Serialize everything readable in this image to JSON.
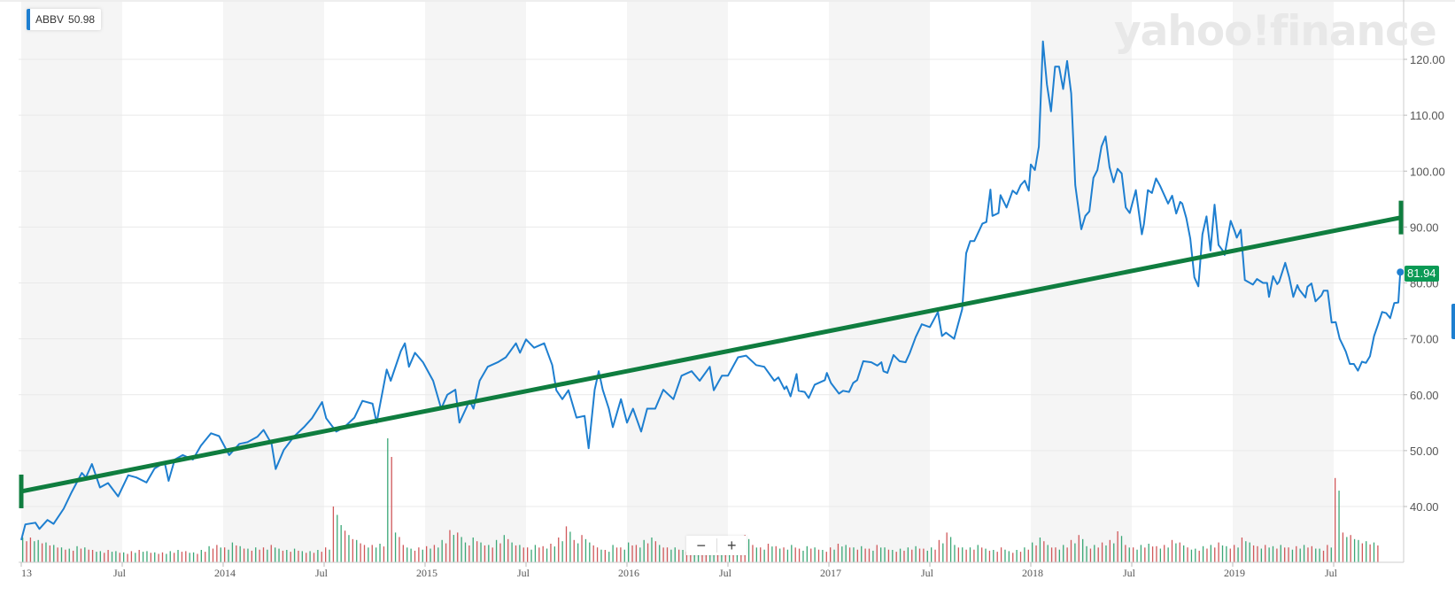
{
  "legend": {
    "symbol": "ABBV",
    "value": "50.98",
    "color": "#1e7fd0"
  },
  "watermark": "yahoo!finance",
  "last_price_label": "81.94",
  "zoom_controls": {
    "zoom_out": "−",
    "zoom_in": "+"
  },
  "colors": {
    "price_line": "#1e7fd0",
    "trendline": "#0f7d3f",
    "last_price_tag": "#0a9a55",
    "volume_up": "#3aa776",
    "volume_down": "#d0585a",
    "band": "#f5f5f5"
  },
  "chart_data": {
    "type": "line",
    "title": "",
    "xlabel": "",
    "ylabel": "",
    "ylim": [
      30,
      130
    ],
    "grid": true,
    "y_axis_side": "right",
    "y_ticks": [
      "40.00",
      "50.00",
      "60.00",
      "70.00",
      "80.00",
      "90.00",
      "100.00",
      "110.00",
      "120.00"
    ],
    "x_ticks": [
      {
        "label": "13",
        "year": 2013.0
      },
      {
        "label": "Jul",
        "year": 2013.5
      },
      {
        "label": "2014",
        "year": 2014.0
      },
      {
        "label": "Jul",
        "year": 2014.5
      },
      {
        "label": "2015",
        "year": 2015.0
      },
      {
        "label": "Jul",
        "year": 2015.5
      },
      {
        "label": "2016",
        "year": 2016.0
      },
      {
        "label": "Jul",
        "year": 2016.5
      },
      {
        "label": "2017",
        "year": 2017.0
      },
      {
        "label": "Jul",
        "year": 2017.5
      },
      {
        "label": "2018",
        "year": 2018.0
      },
      {
        "label": "Jul",
        "year": 2018.5
      },
      {
        "label": "2019",
        "year": 2019.0
      },
      {
        "label": "Jul",
        "year": 2019.5
      }
    ],
    "series": [
      {
        "points": [
          [
            2013.0,
            34.0
          ],
          [
            2013.02,
            36.8
          ],
          [
            2013.07,
            37.1
          ],
          [
            2013.09,
            36.0
          ],
          [
            2013.13,
            37.6
          ],
          [
            2013.16,
            36.9
          ],
          [
            2013.21,
            39.6
          ],
          [
            2013.25,
            42.6
          ],
          [
            2013.3,
            46.0
          ],
          [
            2013.32,
            45.2
          ],
          [
            2013.35,
            47.6
          ],
          [
            2013.39,
            43.4
          ],
          [
            2013.43,
            44.2
          ],
          [
            2013.48,
            41.8
          ],
          [
            2013.53,
            45.6
          ],
          [
            2013.57,
            45.2
          ],
          [
            2013.62,
            44.3
          ],
          [
            2013.66,
            46.8
          ],
          [
            2013.71,
            47.9
          ],
          [
            2013.73,
            44.6
          ],
          [
            2013.76,
            48.4
          ],
          [
            2013.8,
            49.2
          ],
          [
            2013.85,
            48.4
          ],
          [
            2013.89,
            50.9
          ],
          [
            2013.94,
            53.1
          ],
          [
            2013.98,
            52.6
          ],
          [
            2014.03,
            49.2
          ],
          [
            2014.08,
            51.2
          ],
          [
            2014.12,
            51.5
          ],
          [
            2014.17,
            52.5
          ],
          [
            2014.2,
            53.7
          ],
          [
            2014.24,
            51.2
          ],
          [
            2014.26,
            46.7
          ],
          [
            2014.3,
            50.1
          ],
          [
            2014.35,
            52.5
          ],
          [
            2014.4,
            54.2
          ],
          [
            2014.44,
            55.8
          ],
          [
            2014.49,
            58.7
          ],
          [
            2014.51,
            55.8
          ],
          [
            2014.56,
            53.4
          ],
          [
            2014.6,
            54.2
          ],
          [
            2014.65,
            55.9
          ],
          [
            2014.69,
            58.9
          ],
          [
            2014.74,
            58.4
          ],
          [
            2014.76,
            55.0
          ],
          [
            2014.81,
            64.5
          ],
          [
            2014.83,
            62.5
          ],
          [
            2014.88,
            67.8
          ],
          [
            2014.9,
            69.2
          ],
          [
            2014.92,
            65.0
          ],
          [
            2014.95,
            67.5
          ],
          [
            2014.99,
            65.8
          ],
          [
            2015.04,
            62.5
          ],
          [
            2015.08,
            57.5
          ],
          [
            2015.11,
            60.0
          ],
          [
            2015.15,
            60.9
          ],
          [
            2015.17,
            55.0
          ],
          [
            2015.22,
            58.9
          ],
          [
            2015.24,
            57.5
          ],
          [
            2015.27,
            62.5
          ],
          [
            2015.31,
            65.0
          ],
          [
            2015.36,
            65.8
          ],
          [
            2015.4,
            66.7
          ],
          [
            2015.45,
            69.2
          ],
          [
            2015.47,
            67.5
          ],
          [
            2015.5,
            69.9
          ],
          [
            2015.54,
            68.4
          ],
          [
            2015.59,
            69.2
          ],
          [
            2015.63,
            65.3
          ],
          [
            2015.65,
            60.8
          ],
          [
            2015.68,
            59.2
          ],
          [
            2015.71,
            60.8
          ],
          [
            2015.75,
            55.9
          ],
          [
            2015.79,
            56.2
          ],
          [
            2015.81,
            50.4
          ],
          [
            2015.84,
            60.9
          ],
          [
            2015.86,
            64.2
          ],
          [
            2015.88,
            60.9
          ],
          [
            2015.91,
            57.5
          ],
          [
            2015.93,
            54.2
          ],
          [
            2015.97,
            59.2
          ],
          [
            2016.0,
            55.0
          ],
          [
            2016.03,
            57.5
          ],
          [
            2016.07,
            53.4
          ],
          [
            2016.1,
            57.5
          ],
          [
            2016.14,
            57.5
          ],
          [
            2016.18,
            60.9
          ],
          [
            2016.23,
            59.2
          ],
          [
            2016.27,
            63.4
          ],
          [
            2016.32,
            64.2
          ],
          [
            2016.36,
            62.5
          ],
          [
            2016.41,
            65.0
          ],
          [
            2016.43,
            60.8
          ],
          [
            2016.47,
            63.4
          ],
          [
            2016.5,
            63.4
          ],
          [
            2016.55,
            66.7
          ],
          [
            2016.59,
            67.0
          ],
          [
            2016.64,
            65.3
          ],
          [
            2016.68,
            65.0
          ],
          [
            2016.73,
            62.5
          ],
          [
            2016.75,
            63.1
          ],
          [
            2016.78,
            61.0
          ],
          [
            2016.79,
            61.5
          ],
          [
            2016.81,
            59.7
          ],
          [
            2016.84,
            63.7
          ],
          [
            2016.85,
            60.7
          ],
          [
            2016.88,
            60.5
          ],
          [
            2016.9,
            59.4
          ],
          [
            2016.93,
            61.8
          ],
          [
            2016.98,
            62.6
          ],
          [
            2016.99,
            63.9
          ],
          [
            2017.01,
            62.1
          ],
          [
            2017.05,
            60.2
          ],
          [
            2017.07,
            60.7
          ],
          [
            2017.1,
            60.5
          ],
          [
            2017.12,
            62.1
          ],
          [
            2017.14,
            62.6
          ],
          [
            2017.17,
            66.0
          ],
          [
            2017.21,
            65.8
          ],
          [
            2017.24,
            65.2
          ],
          [
            2017.26,
            65.8
          ],
          [
            2017.27,
            64.2
          ],
          [
            2017.29,
            63.9
          ],
          [
            2017.32,
            67.1
          ],
          [
            2017.35,
            66.0
          ],
          [
            2017.38,
            65.8
          ],
          [
            2017.4,
            67.4
          ],
          [
            2017.43,
            70.3
          ],
          [
            2017.46,
            72.6
          ],
          [
            2017.5,
            72.1
          ],
          [
            2017.54,
            74.8
          ],
          [
            2017.56,
            70.5
          ],
          [
            2017.58,
            71.1
          ],
          [
            2017.62,
            70.0
          ],
          [
            2017.66,
            75.3
          ],
          [
            2017.68,
            85.3
          ],
          [
            2017.7,
            87.5
          ],
          [
            2017.72,
            87.5
          ],
          [
            2017.76,
            90.6
          ],
          [
            2017.78,
            90.9
          ],
          [
            2017.8,
            96.7
          ],
          [
            2017.81,
            92.0
          ],
          [
            2017.84,
            92.5
          ],
          [
            2017.85,
            95.7
          ],
          [
            2017.88,
            93.5
          ],
          [
            2017.91,
            96.5
          ],
          [
            2017.93,
            95.9
          ],
          [
            2017.95,
            97.5
          ],
          [
            2017.97,
            98.3
          ],
          [
            2017.99,
            96.5
          ],
          [
            2018.0,
            101.2
          ],
          [
            2018.02,
            100.2
          ],
          [
            2018.04,
            104.4
          ],
          [
            2018.06,
            123.2
          ],
          [
            2018.08,
            115.5
          ],
          [
            2018.1,
            110.7
          ],
          [
            2018.12,
            118.7
          ],
          [
            2018.14,
            118.7
          ],
          [
            2018.16,
            114.7
          ],
          [
            2018.18,
            119.7
          ],
          [
            2018.2,
            113.9
          ],
          [
            2018.22,
            97.5
          ],
          [
            2018.23,
            94.9
          ],
          [
            2018.25,
            89.6
          ],
          [
            2018.27,
            92.0
          ],
          [
            2018.29,
            92.8
          ],
          [
            2018.31,
            98.8
          ],
          [
            2018.33,
            100.2
          ],
          [
            2018.35,
            104.4
          ],
          [
            2018.37,
            106.2
          ],
          [
            2018.39,
            100.7
          ],
          [
            2018.41,
            98.0
          ],
          [
            2018.43,
            100.4
          ],
          [
            2018.45,
            99.6
          ],
          [
            2018.47,
            93.5
          ],
          [
            2018.49,
            92.5
          ],
          [
            2018.52,
            96.6
          ],
          [
            2018.55,
            88.7
          ],
          [
            2018.56,
            90.5
          ],
          [
            2018.58,
            96.6
          ],
          [
            2018.6,
            96.1
          ],
          [
            2018.62,
            98.7
          ],
          [
            2018.64,
            97.4
          ],
          [
            2018.66,
            95.8
          ],
          [
            2018.68,
            94.2
          ],
          [
            2018.7,
            95.6
          ],
          [
            2018.72,
            92.4
          ],
          [
            2018.74,
            94.5
          ],
          [
            2018.75,
            94.2
          ],
          [
            2018.77,
            91.6
          ],
          [
            2018.79,
            87.9
          ],
          [
            2018.81,
            81.0
          ],
          [
            2018.83,
            79.4
          ],
          [
            2018.85,
            88.7
          ],
          [
            2018.87,
            91.9
          ],
          [
            2018.89,
            85.8
          ],
          [
            2018.91,
            94.0
          ],
          [
            2018.93,
            86.8
          ],
          [
            2018.95,
            85.8
          ],
          [
            2018.96,
            85.0
          ],
          [
            2018.99,
            91.1
          ],
          [
            2019.01,
            89.2
          ],
          [
            2019.02,
            88.1
          ],
          [
            2019.04,
            89.5
          ],
          [
            2019.06,
            80.5
          ],
          [
            2019.1,
            79.7
          ],
          [
            2019.12,
            80.7
          ],
          [
            2019.15,
            80.0
          ],
          [
            2019.17,
            80.0
          ],
          [
            2019.18,
            77.5
          ],
          [
            2019.2,
            81.2
          ],
          [
            2019.22,
            79.8
          ],
          [
            2019.23,
            80.2
          ],
          [
            2019.26,
            83.6
          ],
          [
            2019.28,
            81.0
          ],
          [
            2019.3,
            77.5
          ],
          [
            2019.32,
            79.6
          ],
          [
            2019.33,
            78.8
          ],
          [
            2019.36,
            77.4
          ],
          [
            2019.37,
            79.3
          ],
          [
            2019.39,
            79.9
          ],
          [
            2019.41,
            76.7
          ],
          [
            2019.44,
            77.8
          ],
          [
            2019.45,
            78.6
          ],
          [
            2019.47,
            78.6
          ],
          [
            2019.49,
            72.9
          ],
          [
            2019.51,
            73.0
          ],
          [
            2019.53,
            70.0
          ],
          [
            2019.55,
            68.5
          ],
          [
            2019.56,
            67.7
          ],
          [
            2019.58,
            65.5
          ],
          [
            2019.6,
            65.5
          ],
          [
            2019.62,
            64.3
          ],
          [
            2019.64,
            65.9
          ],
          [
            2019.66,
            65.7
          ],
          [
            2019.68,
            66.9
          ],
          [
            2019.7,
            70.5
          ],
          [
            2019.72,
            72.6
          ],
          [
            2019.74,
            74.8
          ],
          [
            2019.76,
            74.6
          ],
          [
            2019.78,
            73.7
          ],
          [
            2019.8,
            76.4
          ],
          [
            2019.82,
            76.5
          ],
          [
            2019.83,
            81.94
          ]
        ]
      }
    ],
    "trendline": {
      "start": [
        2013.0,
        42.7
      ],
      "end": [
        2019.85,
        91.7
      ]
    },
    "volume_relative_percent": [
      20,
      20,
      18,
      16,
      14,
      12,
      11,
      13,
      12,
      10,
      9,
      10,
      9,
      8,
      9,
      10,
      9,
      8,
      8,
      9,
      10,
      9,
      8,
      10,
      13,
      14,
      12,
      16,
      13,
      11,
      12,
      12,
      14,
      11,
      10,
      11,
      9,
      9,
      10,
      12,
      45,
      30,
      22,
      18,
      14,
      14,
      15,
      100,
      24,
      14,
      11,
      12,
      13,
      14,
      18,
      26,
      24,
      16,
      20,
      16,
      14,
      18,
      22,
      16,
      14,
      12,
      14,
      13,
      15,
      20,
      29,
      18,
      22,
      16,
      12,
      10,
      14,
      12,
      16,
      14,
      18,
      20,
      14,
      12,
      12,
      10,
      12,
      14,
      13,
      11,
      12,
      16,
      20,
      22,
      14,
      12,
      15,
      13,
      12,
      14,
      11,
      13,
      12,
      10,
      12,
      15,
      14,
      12,
      13,
      11,
      14,
      12,
      10,
      11,
      12,
      13,
      11,
      12,
      18,
      24,
      14,
      12,
      12,
      14,
      11,
      10,
      12,
      9,
      10,
      12,
      16,
      20,
      14,
      12,
      14,
      18,
      22,
      13,
      14,
      16,
      18,
      25,
      14,
      12,
      14,
      15,
      13,
      14,
      18,
      16,
      12,
      11,
      13,
      14,
      16,
      13,
      14,
      20,
      16,
      13,
      14,
      13,
      14,
      12,
      13,
      14,
      13,
      11,
      14,
      68,
      24,
      22,
      18,
      17,
      16
    ]
  }
}
